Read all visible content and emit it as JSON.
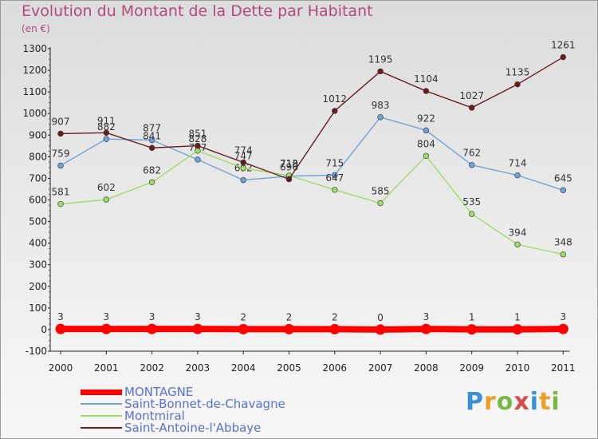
{
  "title": "Evolution du Montant de la Dette par Habitant",
  "unit": "(en €)",
  "brand": {
    "letters": [
      {
        "ch": "P",
        "color": "#3a8fd8"
      },
      {
        "ch": "r",
        "color": "#e8a02a"
      },
      {
        "ch": "o",
        "color": "#7ab843"
      },
      {
        "ch": "x",
        "color": "#d94a4a"
      },
      {
        "ch": "i",
        "color": "#3a8fd8"
      },
      {
        "ch": "t",
        "color": "#e8a02a"
      },
      {
        "ch": "i",
        "color": "#7ab843"
      }
    ]
  },
  "chart_data": {
    "type": "line",
    "x": [
      "2000",
      "2001",
      "2002",
      "2003",
      "2004",
      "2005",
      "2006",
      "2007",
      "2008",
      "2009",
      "2010",
      "2011"
    ],
    "ylim": [
      -100,
      1300
    ],
    "yticks": [
      -100,
      0,
      100,
      200,
      300,
      400,
      500,
      600,
      700,
      800,
      900,
      1000,
      1100,
      1200,
      1300
    ],
    "grid": false,
    "legend_position": "bottom-left",
    "series": [
      {
        "name": "MONTAGNE",
        "color": "#ff0000",
        "values": [
          3,
          3,
          3,
          3,
          2,
          2,
          2,
          0,
          3,
          1,
          1,
          3
        ]
      },
      {
        "name": "Saint-Bonnet-de-Chavagne",
        "color": "#6ea4d8",
        "values": [
          759,
          882,
          877,
          787,
          692,
          710,
          715,
          983,
          922,
          762,
          714,
          645
        ]
      },
      {
        "name": "Montmiral",
        "color": "#9edc6a",
        "values": [
          581,
          602,
          682,
          828,
          747,
          713,
          647,
          585,
          804,
          535,
          394,
          348
        ]
      },
      {
        "name": "Saint-Antoine-l'Abbaye",
        "color": "#6b1d1d",
        "values": [
          907,
          911,
          841,
          851,
          774,
          696,
          1012,
          1195,
          1104,
          1027,
          1135,
          1261
        ]
      }
    ]
  }
}
